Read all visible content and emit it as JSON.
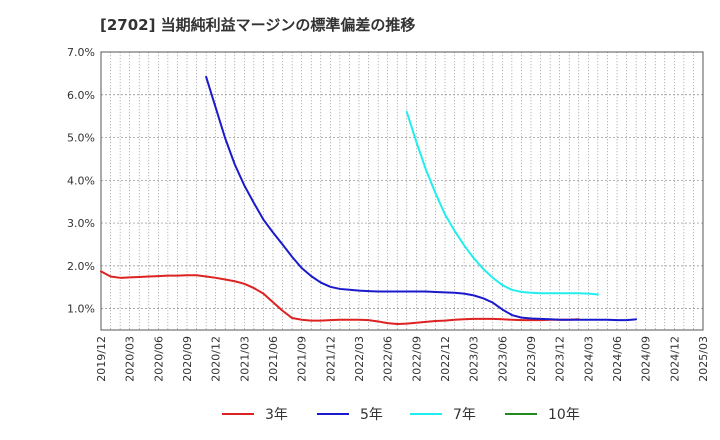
{
  "chart_data": {
    "type": "line",
    "title": "[2702]  当期純利益マージンの標準偏差の推移",
    "xlabel": "",
    "ylabel": "",
    "ylim": [
      0.5,
      7.0
    ],
    "yticks": [
      "1.0%",
      "2.0%",
      "3.0%",
      "4.0%",
      "5.0%",
      "6.0%",
      "7.0%"
    ],
    "ytick_values": [
      1.0,
      2.0,
      3.0,
      4.0,
      5.0,
      6.0,
      7.0
    ],
    "xticks": [
      "2019/12",
      "2020/03",
      "2020/06",
      "2020/09",
      "2020/12",
      "2021/03",
      "2021/06",
      "2021/09",
      "2021/12",
      "2022/03",
      "2022/06",
      "2022/09",
      "2022/12",
      "2023/03",
      "2023/06",
      "2023/09",
      "2023/12",
      "2024/03",
      "2024/06",
      "2024/09",
      "2024/12",
      "2025/03"
    ],
    "grid": true,
    "legend_position": "bottom",
    "series": [
      {
        "name": "3年",
        "color": "#dd2222",
        "start_index": 0,
        "values": [
          1.87,
          1.75,
          1.72,
          1.73,
          1.74,
          1.75,
          1.76,
          1.77,
          1.77,
          1.78,
          1.78,
          1.75,
          1.72,
          1.68,
          1.64,
          1.58,
          1.48,
          1.35,
          1.15,
          0.95,
          0.78,
          0.74,
          0.72,
          0.72,
          0.73,
          0.74,
          0.74,
          0.74,
          0.73,
          0.7,
          0.66,
          0.64,
          0.65,
          0.67,
          0.69,
          0.71,
          0.72,
          0.74,
          0.75,
          0.76,
          0.76,
          0.76,
          0.75,
          0.74,
          0.73,
          0.73,
          0.73,
          0.74,
          0.74,
          0.74,
          0.75
        ]
      },
      {
        "name": "5年",
        "color": "#1a1acc",
        "start_index": 11,
        "values": [
          6.42,
          5.7,
          4.98,
          4.37,
          3.88,
          3.47,
          3.08,
          2.78,
          2.5,
          2.21,
          1.95,
          1.76,
          1.61,
          1.51,
          1.46,
          1.44,
          1.42,
          1.41,
          1.4,
          1.4,
          1.4,
          1.4,
          1.4,
          1.4,
          1.39,
          1.38,
          1.37,
          1.35,
          1.31,
          1.24,
          1.14,
          0.98,
          0.85,
          0.79,
          0.77,
          0.76,
          0.75,
          0.74,
          0.74,
          0.74,
          0.74,
          0.74,
          0.74,
          0.73,
          0.73,
          0.75
        ]
      },
      {
        "name": "7年",
        "color": "#22eeee",
        "start_index": 32,
        "values": [
          5.6,
          4.9,
          4.25,
          3.7,
          3.2,
          2.82,
          2.48,
          2.18,
          1.93,
          1.72,
          1.55,
          1.44,
          1.39,
          1.37,
          1.36,
          1.36,
          1.36,
          1.36,
          1.36,
          1.35,
          1.33
        ]
      },
      {
        "name": "10年",
        "color": "#228822",
        "start_index": 0,
        "values": []
      }
    ]
  }
}
